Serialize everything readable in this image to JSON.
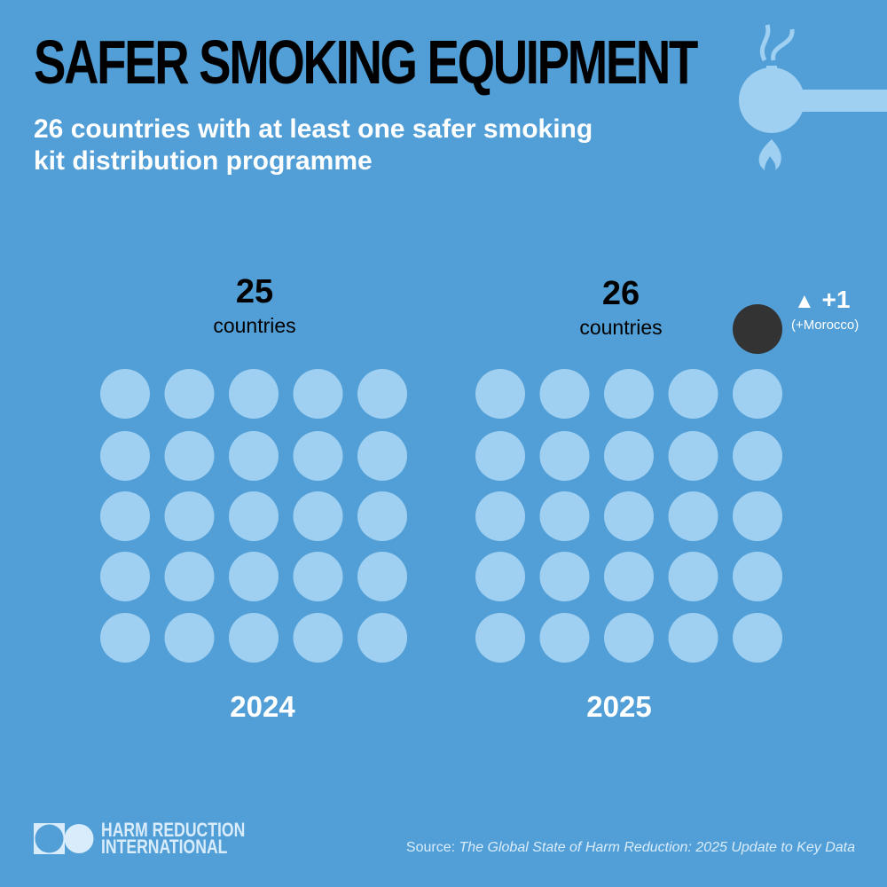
{
  "header": {
    "title": "SAFER SMOKING EQUIPMENT",
    "subtitle": "26 countries with at least one safer smoking kit distribution programme",
    "icon": "pipe-with-flame-icon"
  },
  "chart_data": {
    "type": "pictogram",
    "unit": "countries",
    "groups": [
      {
        "year": "2024",
        "value": 25,
        "value_label": "25",
        "unit_label": "countries"
      },
      {
        "year": "2025",
        "value": 26,
        "value_label": "26",
        "unit_label": "countries",
        "new": 1,
        "change_label": "+1",
        "change_note": "(+Morocco)"
      }
    ],
    "colors": {
      "background": "#519fd6",
      "existing": "#9fcff1",
      "new": "#333333"
    }
  },
  "footer": {
    "org_line1": "HARM REDUCTION",
    "org_line2": "INTERNATIONAL",
    "source_prefix": "Source: ",
    "source_title": "The Global State of Harm Reduction: 2025 Update to Key Data"
  }
}
